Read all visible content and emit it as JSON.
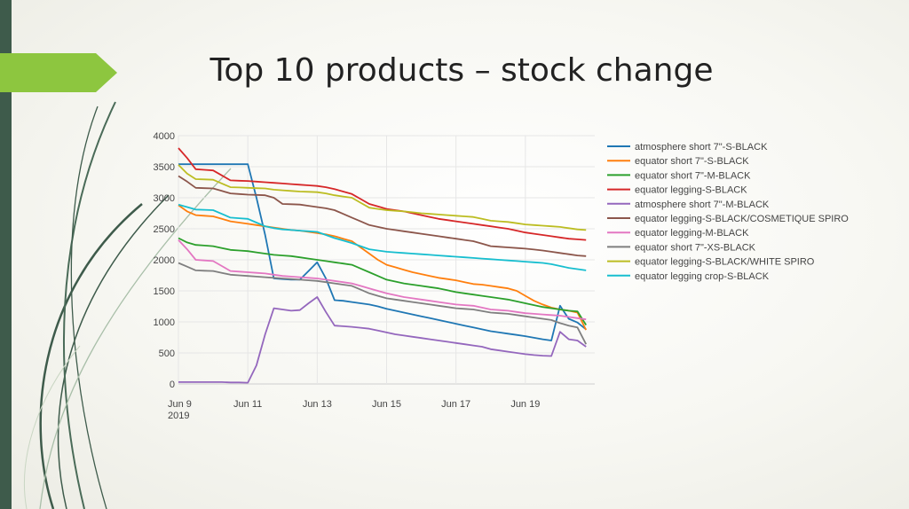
{
  "slide": {
    "title": "Top 10 products – stock change",
    "accent_color": "#8dc63f",
    "band_color": "#3e5b4b"
  },
  "chart_data": {
    "type": "line",
    "title": "",
    "xlabel": "",
    "ylabel": "",
    "ylim": [
      0,
      4000
    ],
    "yticks": [
      0,
      500,
      1000,
      1500,
      2000,
      2500,
      3000,
      3500,
      4000
    ],
    "xlim": [
      0,
      24
    ],
    "xticks": [
      {
        "x": 0,
        "label": "Jun 9",
        "sub": "2019"
      },
      {
        "x": 4,
        "label": "Jun 11",
        "sub": ""
      },
      {
        "x": 8,
        "label": "Jun 13",
        "sub": ""
      },
      {
        "x": 12,
        "label": "Jun 15",
        "sub": ""
      },
      {
        "x": 16,
        "label": "Jun 17",
        "sub": ""
      },
      {
        "x": 20,
        "label": "Jun 19",
        "sub": ""
      }
    ],
    "x": [
      0,
      0.5,
      1,
      1.5,
      2,
      2.5,
      3,
      3.5,
      4,
      4.5,
      5,
      5.5,
      6,
      6.5,
      7,
      7.5,
      8,
      8.5,
      9,
      9.5,
      10,
      10.5,
      11,
      11.5,
      12,
      12.5,
      13,
      13.5,
      14,
      14.5,
      15,
      15.5,
      16,
      16.5,
      17,
      17.5,
      18,
      18.5,
      19,
      19.5,
      20,
      20.5,
      21,
      21.5,
      22,
      22.5,
      23,
      23.5
    ],
    "legend_position": "right",
    "grid": true,
    "series": [
      {
        "name": "atmosphere short 7\"-S-BLACK",
        "color": "#1f77b4",
        "values": [
          3540,
          3540,
          3540,
          3540,
          3540,
          3540,
          3540,
          3540,
          3540,
          3000,
          2400,
          1700,
          1690,
          1680,
          1680,
          1820,
          1960,
          1700,
          1350,
          1340,
          1320,
          1300,
          1280,
          1250,
          1210,
          1180,
          1150,
          1120,
          1090,
          1060,
          1030,
          1000,
          970,
          940,
          910,
          880,
          850,
          830,
          810,
          790,
          770,
          745,
          720,
          700,
          1260,
          1050,
          990,
          880
        ]
      },
      {
        "name": "equator short 7\"-S-BLACK",
        "color": "#ff7f0e",
        "values": [
          2880,
          2780,
          2720,
          2710,
          2700,
          2660,
          2620,
          2600,
          2580,
          2560,
          2540,
          2520,
          2500,
          2480,
          2470,
          2450,
          2430,
          2410,
          2380,
          2340,
          2300,
          2200,
          2100,
          2000,
          1920,
          1880,
          1840,
          1800,
          1770,
          1740,
          1710,
          1690,
          1670,
          1640,
          1610,
          1600,
          1580,
          1560,
          1540,
          1500,
          1420,
          1340,
          1280,
          1230,
          1200,
          1180,
          1150,
          870
        ]
      },
      {
        "name": "equator short 7\"-M-BLACK",
        "color": "#2ca02c",
        "values": [
          2350,
          2280,
          2240,
          2230,
          2220,
          2190,
          2160,
          2150,
          2140,
          2120,
          2100,
          2080,
          2070,
          2060,
          2040,
          2020,
          2000,
          1980,
          1960,
          1940,
          1920,
          1860,
          1800,
          1740,
          1680,
          1650,
          1620,
          1600,
          1580,
          1560,
          1540,
          1510,
          1480,
          1460,
          1440,
          1420,
          1400,
          1380,
          1360,
          1330,
          1300,
          1270,
          1240,
          1220,
          1200,
          1180,
          1170,
          950
        ]
      },
      {
        "name": "equator legging-S-BLACK",
        "color": "#d62728",
        "values": [
          3800,
          3640,
          3460,
          3450,
          3440,
          3360,
          3280,
          3275,
          3270,
          3260,
          3250,
          3240,
          3230,
          3220,
          3210,
          3200,
          3190,
          3170,
          3140,
          3100,
          3060,
          2980,
          2900,
          2860,
          2820,
          2800,
          2780,
          2750,
          2720,
          2690,
          2660,
          2640,
          2620,
          2600,
          2580,
          2560,
          2540,
          2520,
          2500,
          2470,
          2440,
          2420,
          2400,
          2380,
          2360,
          2340,
          2330,
          2320
        ]
      },
      {
        "name": "atmosphere short 7\"-M-BLACK",
        "color": "#9467bd",
        "values": [
          30,
          30,
          30,
          30,
          30,
          30,
          25,
          25,
          20,
          300,
          800,
          1220,
          1200,
          1180,
          1190,
          1300,
          1400,
          1160,
          940,
          930,
          920,
          905,
          890,
          860,
          830,
          800,
          780,
          760,
          740,
          720,
          700,
          680,
          660,
          640,
          620,
          600,
          560,
          540,
          520,
          500,
          480,
          465,
          455,
          450,
          840,
          720,
          700,
          600
        ]
      },
      {
        "name": "equator legging-S-BLACK/COSMETIQUE SPIRO",
        "color": "#8c564b",
        "values": [
          3350,
          3260,
          3160,
          3155,
          3150,
          3110,
          3070,
          3060,
          3050,
          3045,
          3040,
          3000,
          2900,
          2895,
          2890,
          2870,
          2850,
          2830,
          2800,
          2740,
          2680,
          2620,
          2560,
          2530,
          2500,
          2480,
          2460,
          2440,
          2420,
          2400,
          2380,
          2360,
          2340,
          2320,
          2300,
          2260,
          2220,
          2210,
          2200,
          2190,
          2180,
          2165,
          2150,
          2130,
          2110,
          2090,
          2070,
          2060
        ]
      },
      {
        "name": "equator legging-M-BLACK",
        "color": "#e377c2",
        "values": [
          2320,
          2170,
          2000,
          1990,
          1980,
          1900,
          1820,
          1810,
          1800,
          1790,
          1780,
          1760,
          1740,
          1730,
          1720,
          1710,
          1700,
          1680,
          1660,
          1640,
          1620,
          1580,
          1540,
          1500,
          1460,
          1430,
          1400,
          1380,
          1360,
          1340,
          1320,
          1300,
          1280,
          1270,
          1260,
          1230,
          1200,
          1190,
          1180,
          1160,
          1140,
          1130,
          1120,
          1110,
          1100,
          1080,
          1060,
          1040
        ]
      },
      {
        "name": "equator short 7\"-XS-BLACK",
        "color": "#7f7f7f",
        "values": [
          1950,
          1890,
          1830,
          1825,
          1820,
          1790,
          1760,
          1750,
          1740,
          1730,
          1720,
          1710,
          1700,
          1690,
          1680,
          1670,
          1660,
          1640,
          1620,
          1600,
          1580,
          1520,
          1460,
          1420,
          1380,
          1360,
          1340,
          1320,
          1300,
          1280,
          1260,
          1240,
          1220,
          1210,
          1200,
          1175,
          1150,
          1140,
          1130,
          1110,
          1090,
          1070,
          1050,
          1030,
          980,
          940,
          910,
          640
        ]
      },
      {
        "name": "equator legging-S-BLACK/WHITE SPIRO",
        "color": "#bcbd22",
        "values": [
          3530,
          3390,
          3300,
          3295,
          3290,
          3230,
          3170,
          3165,
          3160,
          3155,
          3150,
          3130,
          3120,
          3110,
          3100,
          3095,
          3090,
          3070,
          3040,
          3020,
          3000,
          2920,
          2840,
          2820,
          2800,
          2790,
          2780,
          2765,
          2750,
          2740,
          2730,
          2720,
          2710,
          2700,
          2690,
          2660,
          2630,
          2620,
          2610,
          2590,
          2570,
          2560,
          2550,
          2540,
          2530,
          2510,
          2490,
          2480
        ]
      },
      {
        "name": "equator legging crop-S-BLACK",
        "color": "#17becf",
        "values": [
          2890,
          2850,
          2810,
          2805,
          2800,
          2740,
          2680,
          2670,
          2660,
          2600,
          2540,
          2510,
          2490,
          2480,
          2470,
          2460,
          2450,
          2400,
          2350,
          2310,
          2270,
          2220,
          2170,
          2150,
          2130,
          2120,
          2110,
          2100,
          2090,
          2080,
          2070,
          2060,
          2050,
          2040,
          2030,
          2020,
          2010,
          2000,
          1990,
          1980,
          1970,
          1960,
          1950,
          1930,
          1900,
          1870,
          1850,
          1830
        ]
      }
    ]
  }
}
